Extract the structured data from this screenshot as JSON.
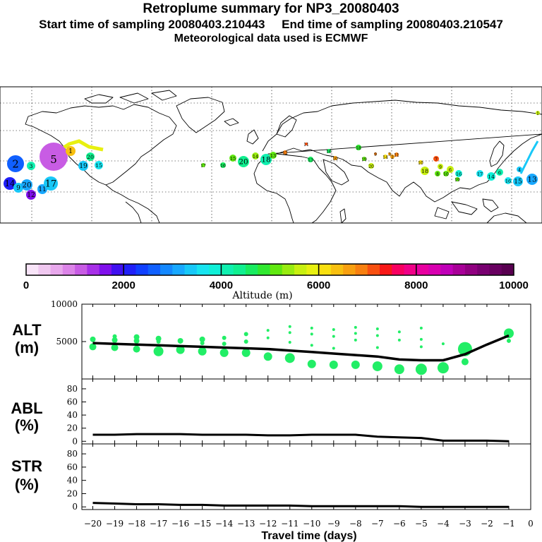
{
  "header": {
    "title": "Retroplume summary for NP3_20080403",
    "sampling": "Start time of sampling 20080403.210443     End time of sampling 20080403.210547",
    "met": "Meteorological data used is ECMWF"
  },
  "colors": {
    "altitude_scale": [
      "#f8e4f8",
      "#f0c8f0",
      "#e8a8ec",
      "#dc84e8",
      "#c85ce4",
      "#a830e8",
      "#8010ec",
      "#4010f0",
      "#2020f8",
      "#1040ff",
      "#1060ff",
      "#1488ff",
      "#18a8ff",
      "#18c8f8",
      "#18e4f0",
      "#10f0d8",
      "#10f0b0",
      "#10f090",
      "#18ec60",
      "#30e830",
      "#60e810",
      "#98ec10",
      "#c8f010",
      "#e8f010",
      "#f8e010",
      "#f8c010",
      "#f8a010",
      "#f88010",
      "#f85010",
      "#f81818",
      "#f80060",
      "#f00088",
      "#e800a0",
      "#d800b0",
      "#c000b8",
      "#a80098",
      "#900080",
      "#780070",
      "#680060",
      "#580050"
    ],
    "line": "#000000",
    "marker": "#22ee66"
  },
  "map": {
    "markers": [
      {
        "label": "2",
        "alt": 2500,
        "r": 12
      },
      {
        "label": "3",
        "alt": 4100,
        "r": 6
      },
      {
        "label": "5",
        "alt": 1200,
        "r": 20
      },
      {
        "label": "14",
        "alt": 2100,
        "r": 9
      },
      {
        "label": "9",
        "alt": 3300,
        "r": 7
      },
      {
        "label": "20",
        "alt": 3000,
        "r": 8
      },
      {
        "label": "12",
        "alt": 1600,
        "r": 7
      },
      {
        "label": "11",
        "alt": 3100,
        "r": 7
      },
      {
        "label": "17",
        "alt": 3300,
        "r": 10
      },
      {
        "label": "1",
        "alt": 6300,
        "r": 7
      },
      {
        "label": "20",
        "alt": 4300,
        "r": 6
      },
      {
        "label": "19",
        "alt": 3300,
        "r": 7
      },
      {
        "label": "15",
        "alt": 3600,
        "r": 6
      },
      {
        "label": "17",
        "alt": 5200,
        "r": 3
      },
      {
        "label": "16",
        "alt": 4500,
        "r": 4
      },
      {
        "label": "15",
        "alt": 5000,
        "r": 5
      },
      {
        "label": "20",
        "alt": 4300,
        "r": 8
      },
      {
        "label": "14",
        "alt": 5300,
        "r": 5
      },
      {
        "label": "18",
        "alt": 4200,
        "r": 8
      },
      {
        "label": "13",
        "alt": 5100,
        "r": 5
      },
      {
        "label": "12",
        "alt": 6800,
        "r": 3
      },
      {
        "label": "11",
        "alt": 7100,
        "r": 2
      },
      {
        "label": "13",
        "alt": 4700,
        "r": 4
      },
      {
        "label": "16",
        "alt": 4600,
        "r": 3
      },
      {
        "label": "10",
        "alt": 6700,
        "r": 3
      },
      {
        "label": "18",
        "alt": 4800,
        "r": 4
      },
      {
        "label": "19",
        "alt": 5200,
        "r": 3
      },
      {
        "label": "20",
        "alt": 5600,
        "r": 4
      },
      {
        "label": "9",
        "alt": 6800,
        "r": 2
      },
      {
        "label": "14",
        "alt": 6200,
        "r": 3
      },
      {
        "label": "3",
        "alt": 6500,
        "r": 2
      },
      {
        "label": "2",
        "alt": 6500,
        "r": 3
      },
      {
        "label": "11",
        "alt": 6800,
        "r": 3
      },
      {
        "label": "10",
        "alt": 6000,
        "r": 3
      },
      {
        "label": "7",
        "alt": 7000,
        "r": 4
      },
      {
        "label": "18",
        "alt": 5500,
        "r": 6
      },
      {
        "label": "8",
        "alt": 5200,
        "r": 4
      },
      {
        "label": "19",
        "alt": 5000,
        "r": 3
      },
      {
        "label": "6",
        "alt": 5700,
        "r": 5
      },
      {
        "label": "9",
        "alt": 5500,
        "r": 4
      },
      {
        "label": "10",
        "alt": 5100,
        "r": 4
      },
      {
        "label": "16",
        "alt": 3900,
        "r": 5
      },
      {
        "label": "17",
        "alt": 3700,
        "r": 5
      },
      {
        "label": "14",
        "alt": 3900,
        "r": 6
      },
      {
        "label": "6",
        "alt": 4100,
        "r": 5
      },
      {
        "label": "16",
        "alt": 3500,
        "r": 5
      },
      {
        "label": "15",
        "alt": 3400,
        "r": 7
      },
      {
        "label": "13",
        "alt": 3200,
        "r": 8
      },
      {
        "label": "4",
        "alt": 3300,
        "r": 4
      },
      {
        "label": "1",
        "alt": 5700,
        "r": 3
      }
    ]
  },
  "colorbar": {
    "tick_labels": [
      "0",
      "2000",
      "4000",
      "6000",
      "8000",
      "10000"
    ],
    "label": "Altitude (m)"
  },
  "chart_data": [
    {
      "type": "scatter",
      "name": "ALT",
      "ylabel": "ALT",
      "yunit": "(m)",
      "ylim": [
        0,
        10000
      ],
      "yticks": [
        5000,
        10000
      ],
      "x": [
        -20,
        -19,
        -18,
        -17,
        -16,
        -15,
        -14,
        -13,
        -12,
        -11,
        -10,
        -9,
        -8,
        -7,
        -6,
        -5,
        -4,
        -3,
        -2,
        -1
      ],
      "mean": [
        4800,
        4700,
        4600,
        4500,
        4400,
        4300,
        4200,
        4100,
        4000,
        3800,
        3600,
        3400,
        3200,
        3000,
        2600,
        2500,
        2500,
        3300,
        4600,
        5800
      ],
      "points": [
        {
          "x": -20,
          "alt": 5300,
          "s": 4
        },
        {
          "x": -20,
          "alt": 4300,
          "s": 5
        },
        {
          "x": -19,
          "alt": 5700,
          "s": 3
        },
        {
          "x": -19,
          "alt": 5200,
          "s": 4
        },
        {
          "x": -19,
          "alt": 4200,
          "s": 5
        },
        {
          "x": -18,
          "alt": 5600,
          "s": 4
        },
        {
          "x": -18,
          "alt": 5100,
          "s": 4
        },
        {
          "x": -18,
          "alt": 4000,
          "s": 5
        },
        {
          "x": -17,
          "alt": 5400,
          "s": 4
        },
        {
          "x": -17,
          "alt": 5000,
          "s": 3
        },
        {
          "x": -17,
          "alt": 3700,
          "s": 7
        },
        {
          "x": -16,
          "alt": 5100,
          "s": 4
        },
        {
          "x": -16,
          "alt": 3900,
          "s": 6
        },
        {
          "x": -15,
          "alt": 5300,
          "s": 4
        },
        {
          "x": -15,
          "alt": 4800,
          "s": 3
        },
        {
          "x": -15,
          "alt": 3700,
          "s": 6
        },
        {
          "x": -14,
          "alt": 5500,
          "s": 3
        },
        {
          "x": -14,
          "alt": 4700,
          "s": 3
        },
        {
          "x": -14,
          "alt": 3500,
          "s": 6
        },
        {
          "x": -13,
          "alt": 6000,
          "s": 3
        },
        {
          "x": -13,
          "alt": 5000,
          "s": 3
        },
        {
          "x": -13,
          "alt": 3500,
          "s": 6
        },
        {
          "x": -12,
          "alt": 6500,
          "s": 2
        },
        {
          "x": -12,
          "alt": 5500,
          "s": 2
        },
        {
          "x": -12,
          "alt": 3000,
          "s": 6
        },
        {
          "x": -11,
          "alt": 7000,
          "s": 2
        },
        {
          "x": -11,
          "alt": 6200,
          "s": 2
        },
        {
          "x": -11,
          "alt": 4900,
          "s": 2
        },
        {
          "x": -11,
          "alt": 2800,
          "s": 7
        },
        {
          "x": -10,
          "alt": 6800,
          "s": 2
        },
        {
          "x": -10,
          "alt": 6000,
          "s": 2
        },
        {
          "x": -10,
          "alt": 4500,
          "s": 2
        },
        {
          "x": -10,
          "alt": 2000,
          "s": 6
        },
        {
          "x": -9,
          "alt": 6600,
          "s": 2
        },
        {
          "x": -9,
          "alt": 5700,
          "s": 2
        },
        {
          "x": -9,
          "alt": 4100,
          "s": 2
        },
        {
          "x": -9,
          "alt": 1900,
          "s": 6
        },
        {
          "x": -8,
          "alt": 6900,
          "s": 2
        },
        {
          "x": -8,
          "alt": 6100,
          "s": 2
        },
        {
          "x": -8,
          "alt": 5200,
          "s": 2
        },
        {
          "x": -8,
          "alt": 1900,
          "s": 6
        },
        {
          "x": -7,
          "alt": 6700,
          "s": 2
        },
        {
          "x": -7,
          "alt": 5800,
          "s": 2
        },
        {
          "x": -7,
          "alt": 4200,
          "s": 2
        },
        {
          "x": -7,
          "alt": 1700,
          "s": 7
        },
        {
          "x": -6,
          "alt": 6300,
          "s": 2
        },
        {
          "x": -6,
          "alt": 5200,
          "s": 2
        },
        {
          "x": -6,
          "alt": 1300,
          "s": 7
        },
        {
          "x": -5,
          "alt": 6800,
          "s": 2
        },
        {
          "x": -5,
          "alt": 5300,
          "s": 2
        },
        {
          "x": -5,
          "alt": 4300,
          "s": 2
        },
        {
          "x": -5,
          "alt": 1300,
          "s": 8
        },
        {
          "x": -4,
          "alt": 4700,
          "s": 2
        },
        {
          "x": -4,
          "alt": 1500,
          "s": 8
        },
        {
          "x": -3,
          "alt": 4000,
          "s": 10
        },
        {
          "x": -3,
          "alt": 2300,
          "s": 5
        },
        {
          "x": -1,
          "alt": 6100,
          "s": 7
        },
        {
          "x": -1,
          "alt": 5100,
          "s": 3
        }
      ]
    },
    {
      "type": "line",
      "name": "ABL",
      "ylabel": "ABL",
      "yunit": "(%)",
      "ylim": [
        0,
        90
      ],
      "yticks": [
        0,
        20,
        40,
        60,
        80
      ],
      "x": [
        -20,
        -19,
        -18,
        -17,
        -16,
        -15,
        -14,
        -13,
        -12,
        -11,
        -10,
        -9,
        -8,
        -7,
        -6,
        -5,
        -4,
        -3,
        -2,
        -1
      ],
      "values": [
        10,
        10,
        11,
        11,
        11,
        10,
        10,
        10,
        9,
        9,
        10,
        10,
        10,
        7,
        6,
        5,
        1,
        1,
        1,
        0
      ]
    },
    {
      "type": "line",
      "name": "STR",
      "ylabel": "STR",
      "yunit": "(%)",
      "ylim": [
        0,
        90
      ],
      "yticks": [
        0,
        20,
        40,
        60,
        80
      ],
      "x": [
        -20,
        -19,
        -18,
        -17,
        -16,
        -15,
        -14,
        -13,
        -12,
        -11,
        -10,
        -9,
        -8,
        -7,
        -6,
        -5,
        -4,
        -3,
        -2,
        -1
      ],
      "values": [
        6,
        5,
        4,
        4,
        3,
        3,
        2,
        2,
        2,
        2,
        1,
        1,
        1,
        1,
        1,
        0,
        0,
        0,
        0,
        0
      ]
    }
  ],
  "xaxis": {
    "label": "Travel time (days)",
    "ticks": [
      -20,
      -19,
      -18,
      -17,
      -16,
      -15,
      -14,
      -13,
      -12,
      -11,
      -10,
      -9,
      -8,
      -7,
      -6,
      -5,
      -4,
      -3,
      -2,
      -1,
      0
    ],
    "tick_labels": [
      "−20",
      "−19",
      "−18",
      "−17",
      "−16",
      "−15",
      "−14",
      "−13",
      "−12",
      "−11",
      "−10",
      "−9",
      "−8",
      "−7",
      "−6",
      "−5",
      "−4",
      "−3",
      "−2",
      "−1",
      "0"
    ]
  }
}
